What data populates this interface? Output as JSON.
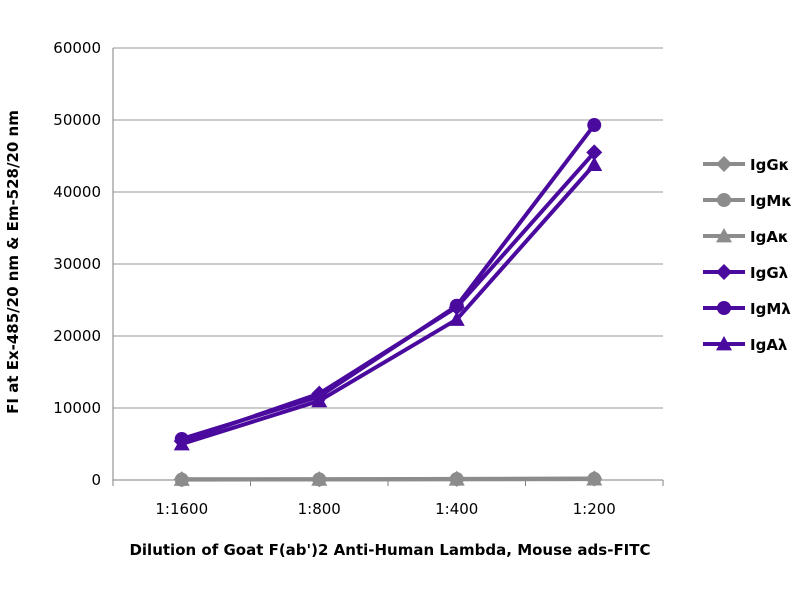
{
  "chart_data": {
    "type": "line",
    "title": "",
    "xlabel": "Dilution of Goat F(ab')2 Anti-Human Lambda, Mouse ads-FITC",
    "ylabel": "FI at Ex-485/20 nm & Em-528/20 nm",
    "categories": [
      "1:1600",
      "1:800",
      "1:400",
      "1:200"
    ],
    "ylim": [
      0,
      60000
    ],
    "yticks": [
      0,
      10000,
      20000,
      30000,
      40000,
      50000,
      60000
    ],
    "grid": true,
    "legend_position": "right",
    "series": [
      {
        "name": "IgGκ",
        "marker": "diamond",
        "color": "#8c8c8c",
        "values": [
          100,
          100,
          150,
          200
        ]
      },
      {
        "name": "IgMκ",
        "marker": "circle",
        "color": "#8c8c8c",
        "values": [
          50,
          80,
          120,
          150
        ]
      },
      {
        "name": "IgAκ",
        "marker": "triangle",
        "color": "#8c8c8c",
        "values": [
          80,
          90,
          100,
          130
        ]
      },
      {
        "name": "IgGλ",
        "marker": "diamond",
        "color": "#4b0a9e",
        "values": [
          5400,
          12000,
          24000,
          45500
        ]
      },
      {
        "name": "IgMλ",
        "marker": "circle",
        "color": "#4b0a9e",
        "values": [
          5700,
          11600,
          24200,
          49300
        ]
      },
      {
        "name": "IgAλ",
        "marker": "triangle",
        "color": "#4b0a9e",
        "values": [
          5000,
          11000,
          22300,
          43800
        ]
      }
    ]
  }
}
